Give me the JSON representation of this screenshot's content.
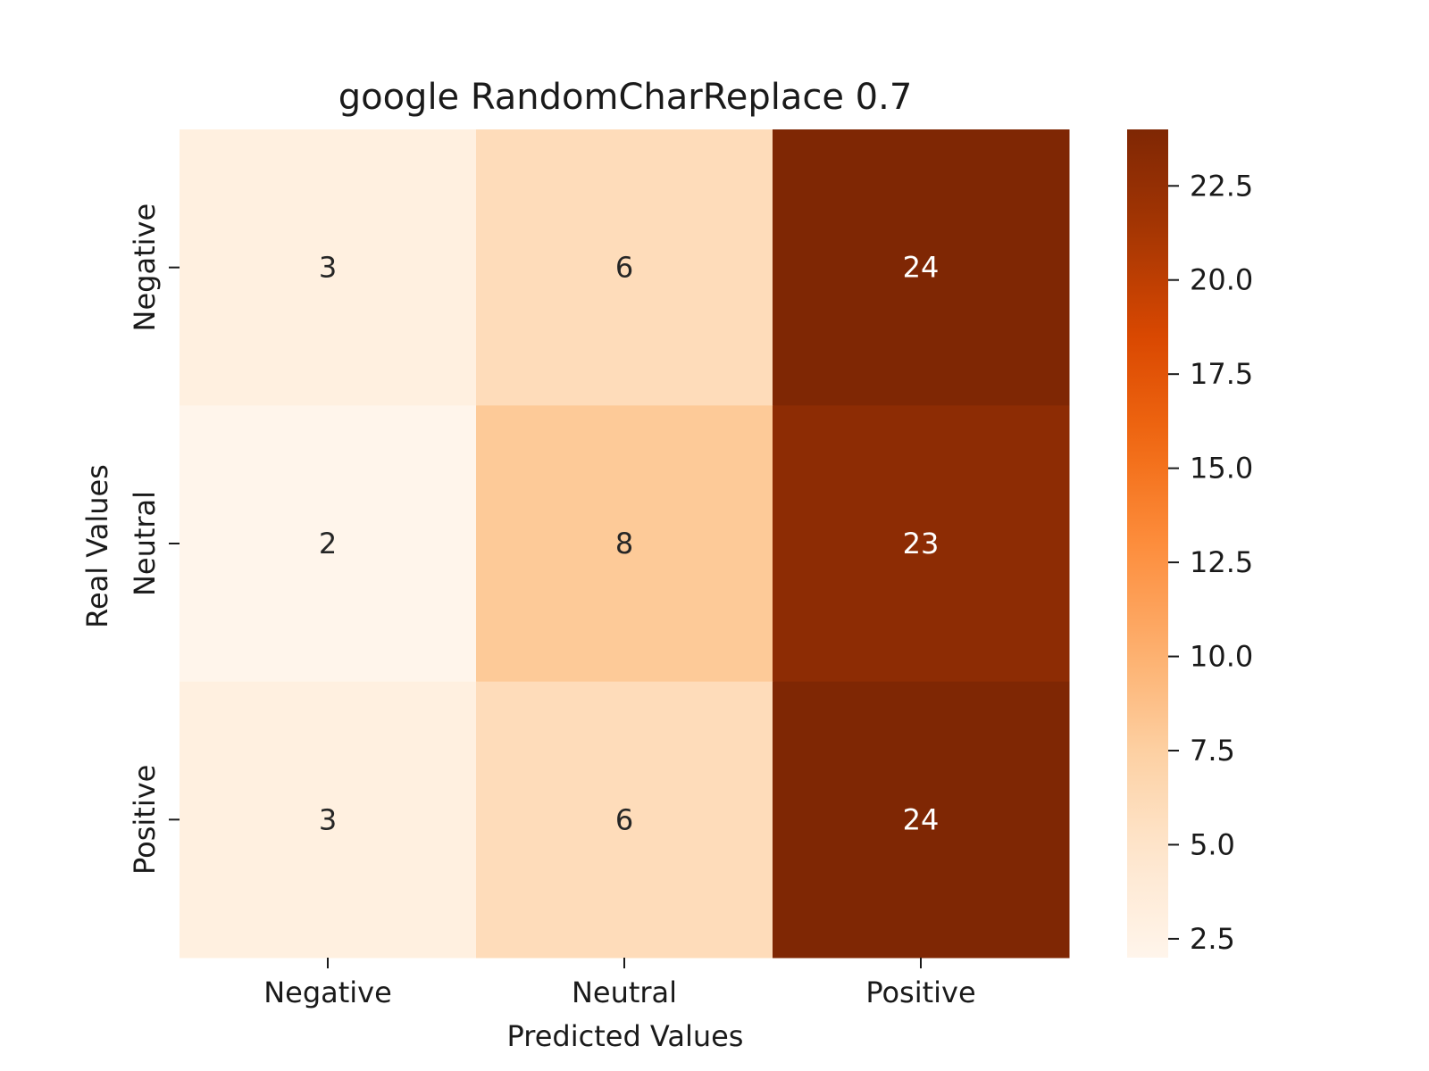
{
  "chart_data": {
    "type": "heatmap",
    "title": "google RandomCharReplace 0.7",
    "xlabel": "Predicted Values",
    "ylabel": "Real Values",
    "x_categories": [
      "Negative",
      "Neutral",
      "Positive"
    ],
    "y_categories": [
      "Negative",
      "Neutral",
      "Positive"
    ],
    "values": [
      [
        3,
        6,
        24
      ],
      [
        2,
        8,
        23
      ],
      [
        3,
        6,
        24
      ]
    ],
    "colormap": "Oranges",
    "colorbar": {
      "min": 2,
      "max": 24,
      "ticks": [
        2.5,
        5.0,
        7.5,
        10.0,
        12.5,
        15.0,
        17.5,
        20.0,
        22.5
      ],
      "tick_labels": [
        "2.5",
        "5.0",
        "7.5",
        "10.0",
        "12.5",
        "15.0",
        "17.5",
        "20.0",
        "22.5"
      ]
    },
    "colors": {
      "low": "#fff5eb",
      "high": "#7f2704",
      "text_dark": "#262626",
      "text_light": "#ffffff"
    }
  }
}
